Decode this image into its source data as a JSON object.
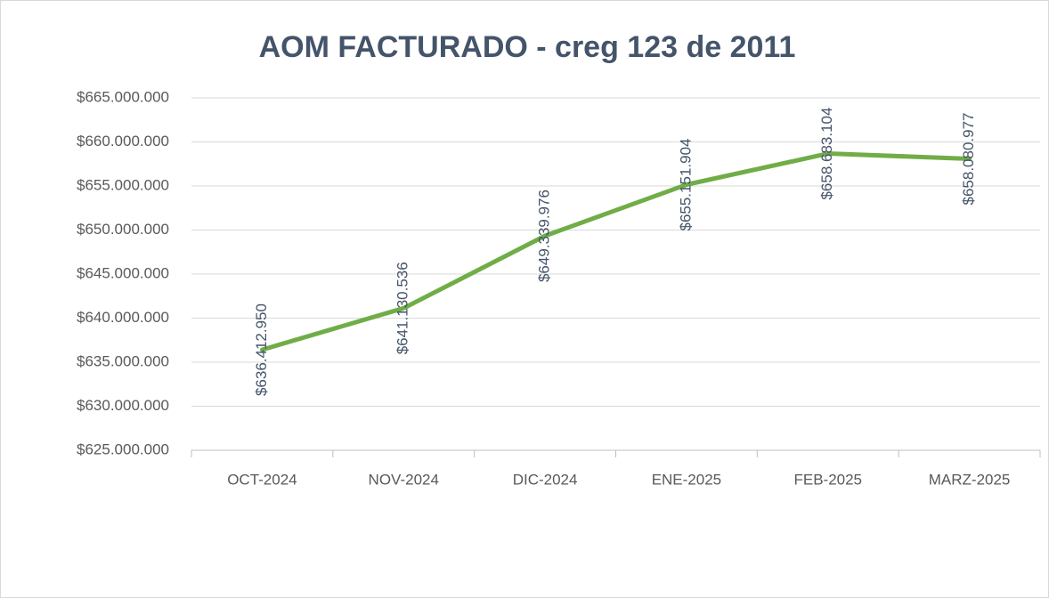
{
  "chart_data": {
    "type": "line",
    "title": "AOM  FACTURADO - creg 123 de 2011",
    "categories": [
      "OCT-2024",
      "NOV-2024",
      "DIC-2024",
      "ENE-2025",
      "FEB-2025",
      "MARZ-2025"
    ],
    "series": [
      {
        "color": "#70ad47",
        "values": [
          636412950,
          641130536,
          649339976,
          655151904,
          658683104,
          658080977
        ],
        "value_labels": [
          "$636.412.950",
          "$641.130.536",
          "$649.339.976",
          "$655.151.904",
          "$658.683.104",
          "$658.080.977"
        ]
      }
    ],
    "ylim": [
      625000000,
      665000000
    ],
    "yticks": [
      {
        "value": 625000000,
        "label": "$625.000.000"
      },
      {
        "value": 630000000,
        "label": "$630.000.000"
      },
      {
        "value": 635000000,
        "label": "$635.000.000"
      },
      {
        "value": 640000000,
        "label": "$640.000.000"
      },
      {
        "value": 645000000,
        "label": "$645.000.000"
      },
      {
        "value": 650000000,
        "label": "$650.000.000"
      },
      {
        "value": 655000000,
        "label": "$655.000.000"
      },
      {
        "value": 660000000,
        "label": "$660.000.000"
      },
      {
        "value": 665000000,
        "label": "$665.000.000"
      }
    ],
    "grid": true
  }
}
